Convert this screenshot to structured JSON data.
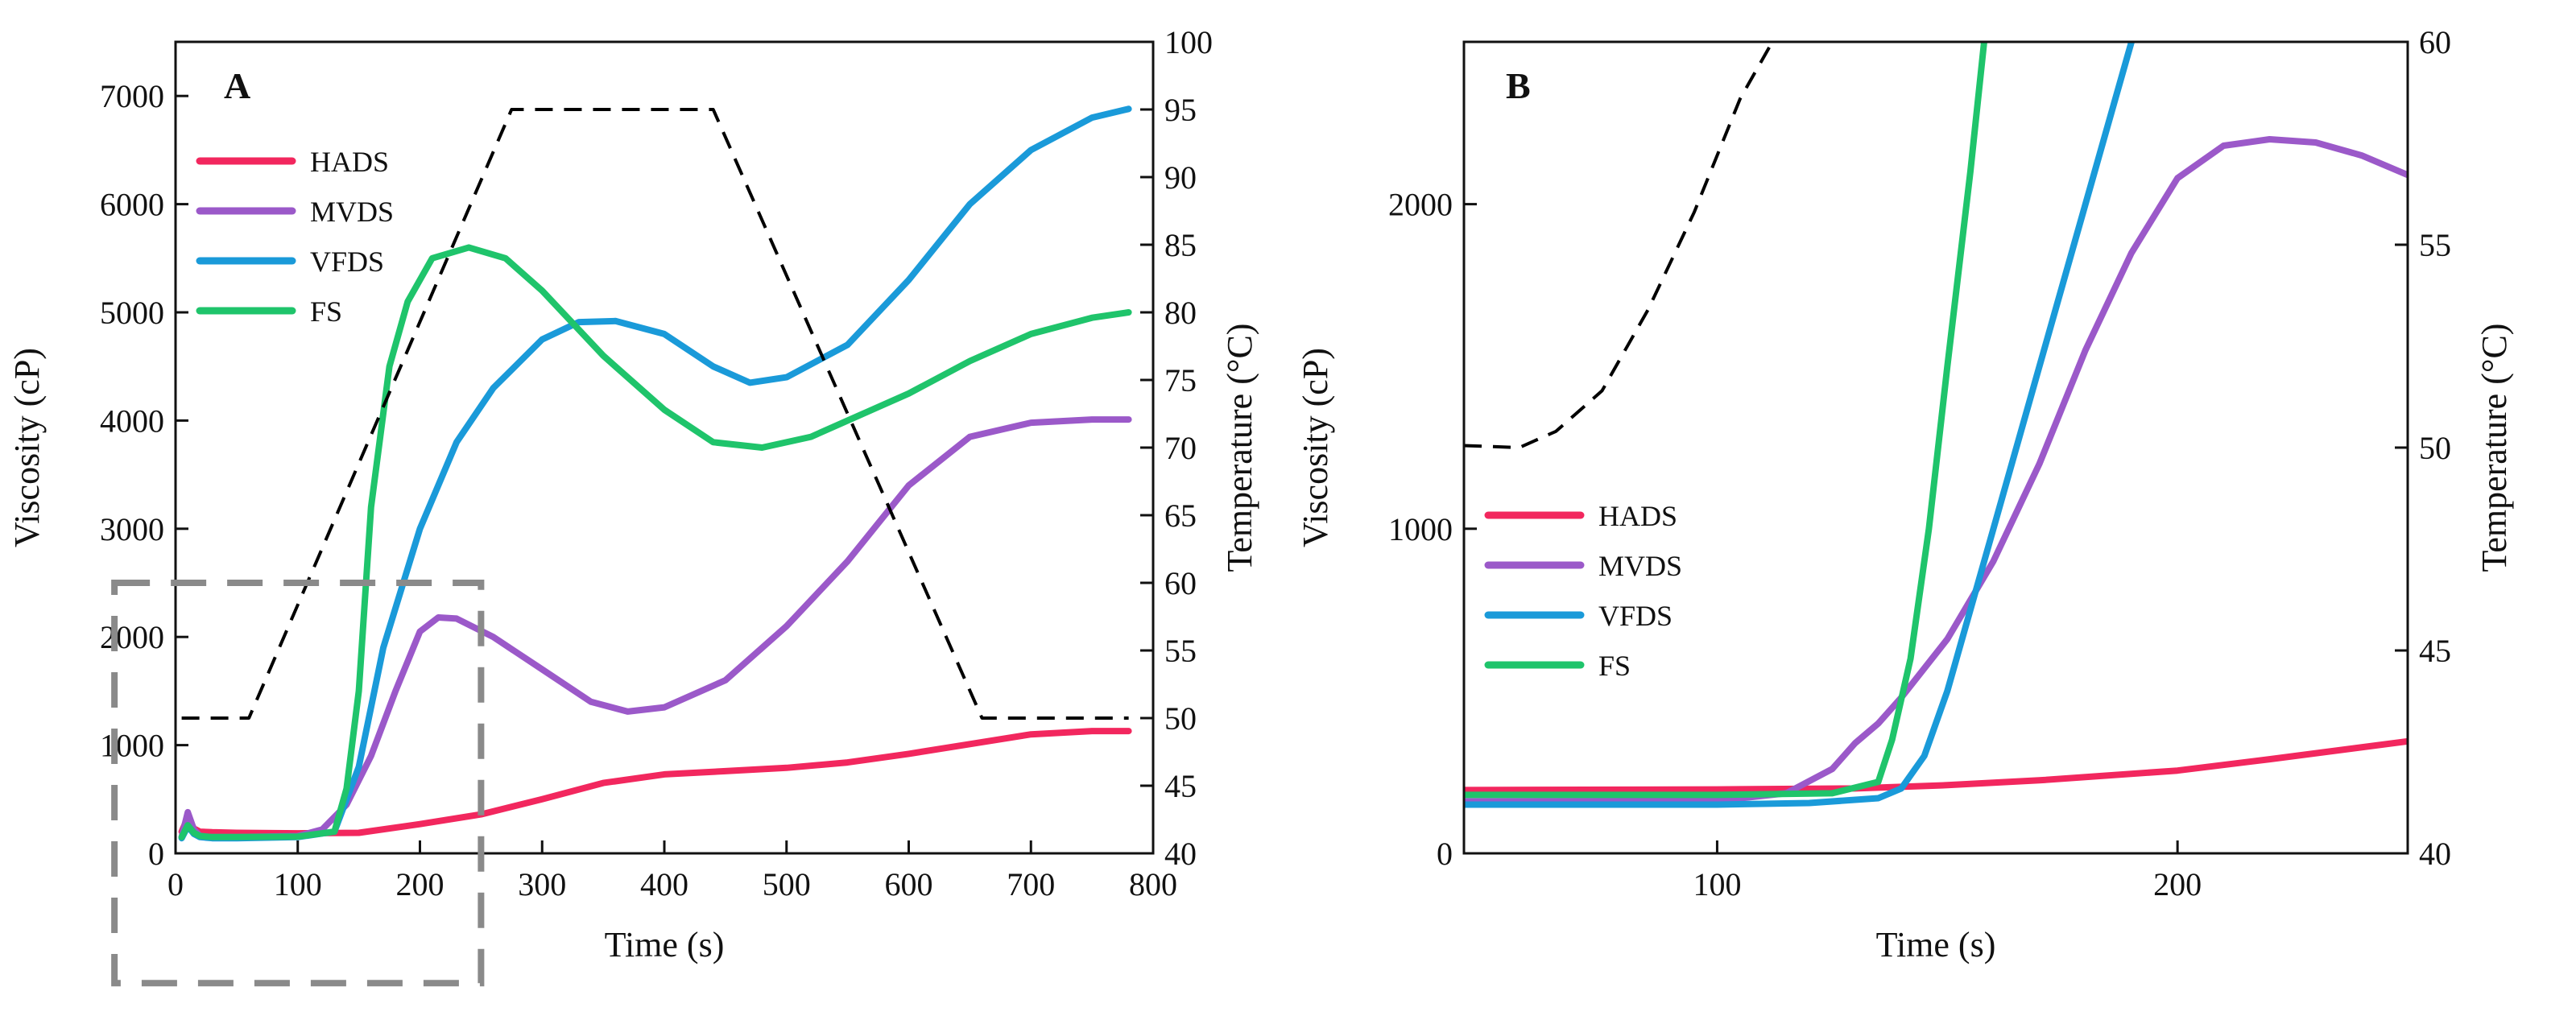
{
  "chart_data": [
    {
      "panel": "A",
      "type": "line",
      "xlabel": "Time (s)",
      "ylabel": "Viscosity (cP)",
      "y2label": "Temperature (°C)",
      "xlim": [
        0,
        800
      ],
      "ylim": [
        0,
        7500
      ],
      "y2lim": [
        40,
        100
      ],
      "xticks": [
        0,
        100,
        200,
        300,
        400,
        500,
        600,
        700,
        800
      ],
      "yticks": [
        0,
        1000,
        2000,
        3000,
        4000,
        5000,
        6000,
        7000
      ],
      "y2ticks": [
        40,
        45,
        50,
        55,
        60,
        65,
        70,
        75,
        80,
        85,
        90,
        95,
        100
      ],
      "legend_position": "top-left",
      "series": [
        {
          "name": "HADS",
          "color": "#f2275e",
          "x": [
            5,
            10,
            15,
            20,
            30,
            50,
            100,
            150,
            200,
            250,
            300,
            350,
            400,
            450,
            500,
            550,
            600,
            650,
            700,
            750,
            780
          ],
          "y": [
            200,
            330,
            230,
            200,
            195,
            190,
            185,
            190,
            270,
            360,
            500,
            650,
            730,
            760,
            790,
            840,
            920,
            1010,
            1100,
            1130,
            1130
          ]
        },
        {
          "name": "MVDS",
          "color": "#9b59c9",
          "x": [
            5,
            10,
            15,
            20,
            30,
            50,
            100,
            120,
            140,
            160,
            180,
            200,
            215,
            230,
            260,
            300,
            340,
            370,
            400,
            450,
            500,
            550,
            600,
            650,
            700,
            750,
            780
          ],
          "y": [
            150,
            380,
            220,
            160,
            150,
            150,
            160,
            220,
            450,
            900,
            1500,
            2050,
            2180,
            2170,
            2000,
            1700,
            1400,
            1310,
            1350,
            1600,
            2100,
            2700,
            3400,
            3850,
            3980,
            4010,
            4010
          ]
        },
        {
          "name": "VFDS",
          "color": "#1a9ad9",
          "x": [
            5,
            10,
            15,
            20,
            30,
            50,
            100,
            130,
            150,
            170,
            200,
            230,
            260,
            300,
            330,
            360,
            400,
            440,
            470,
            500,
            550,
            600,
            650,
            700,
            750,
            780
          ],
          "y": [
            140,
            250,
            180,
            150,
            140,
            140,
            150,
            200,
            800,
            1900,
            3000,
            3800,
            4300,
            4750,
            4910,
            4920,
            4800,
            4500,
            4350,
            4400,
            4700,
            5300,
            6000,
            6500,
            6800,
            6880
          ]
        },
        {
          "name": "FS",
          "color": "#1fc46b",
          "x": [
            5,
            10,
            15,
            20,
            30,
            50,
            100,
            130,
            140,
            150,
            160,
            175,
            190,
            210,
            240,
            270,
            300,
            350,
            400,
            440,
            480,
            520,
            560,
            600,
            650,
            700,
            750,
            780
          ],
          "y": [
            150,
            260,
            190,
            160,
            150,
            150,
            155,
            200,
            600,
            1500,
            3200,
            4500,
            5100,
            5500,
            5600,
            5500,
            5200,
            4600,
            4100,
            3800,
            3750,
            3850,
            4050,
            4250,
            4550,
            4800,
            4950,
            5000
          ]
        },
        {
          "name": "Temperature",
          "color": "#000000",
          "dashed": true,
          "axis": "y2",
          "x": [
            5,
            60,
            275,
            440,
            660,
            780
          ],
          "y": [
            50,
            50,
            95,
            95,
            50,
            50
          ]
        }
      ],
      "legend": [
        {
          "name": "HADS",
          "color": "#f2275e"
        },
        {
          "name": "MVDS",
          "color": "#9b59c9"
        },
        {
          "name": "VFDS",
          "color": "#1a9ad9"
        },
        {
          "name": "FS",
          "color": "#1fc46b"
        }
      ],
      "annotations": [
        {
          "type": "zoom-box",
          "style": "dashed-gray",
          "x_range": [
            -50,
            250
          ],
          "y_range": [
            -1200,
            2500
          ],
          "note": "region enlarged in panel B"
        }
      ]
    },
    {
      "panel": "B",
      "type": "line",
      "xlabel": "Time (s)",
      "ylabel": "Viscosity (cP)",
      "y2label": "Temperature (°C)",
      "xlim": [
        45,
        250
      ],
      "ylim": [
        0,
        2500
      ],
      "y2lim": [
        40,
        60
      ],
      "xticks": [
        100,
        200
      ],
      "yticks": [
        0,
        1000,
        2000
      ],
      "y2ticks": [
        40,
        45,
        50,
        55,
        60
      ],
      "legend_position": "center-left",
      "series": [
        {
          "name": "HADS",
          "color": "#f2275e",
          "x": [
            45,
            100,
            130,
            150,
            170,
            200,
            220,
            250
          ],
          "y": [
            195,
            197,
            200,
            210,
            225,
            255,
            290,
            345
          ]
        },
        {
          "name": "MVDS",
          "color": "#9b59c9",
          "x": [
            45,
            100,
            115,
            125,
            130,
            135,
            140,
            150,
            160,
            170,
            180,
            190,
            200,
            210,
            220,
            230,
            240,
            250
          ],
          "y": [
            160,
            162,
            185,
            260,
            340,
            400,
            480,
            660,
            900,
            1200,
            1550,
            1850,
            2080,
            2180,
            2200,
            2190,
            2150,
            2090
          ]
        },
        {
          "name": "VFDS",
          "color": "#1a9ad9",
          "x": [
            45,
            100,
            120,
            135,
            140,
            145,
            150,
            160,
            170,
            180,
            190
          ],
          "y": [
            150,
            150,
            155,
            170,
            200,
            300,
            500,
            1000,
            1500,
            2000,
            2500
          ]
        },
        {
          "name": "FS",
          "color": "#1fc46b",
          "x": [
            45,
            100,
            125,
            135,
            138,
            142,
            146,
            150,
            155,
            158
          ],
          "y": [
            180,
            180,
            185,
            220,
            350,
            600,
            1000,
            1500,
            2100,
            2500
          ]
        },
        {
          "name": "Temperature",
          "color": "#000000",
          "dashed": true,
          "axis": "y2",
          "x": [
            45,
            57,
            65,
            75,
            85,
            95,
            105,
            112
          ],
          "y": [
            50.05,
            50.0,
            50.4,
            51.4,
            53.4,
            55.8,
            58.6,
            60
          ]
        }
      ],
      "legend": [
        {
          "name": "HADS",
          "color": "#f2275e"
        },
        {
          "name": "MVDS",
          "color": "#9b59c9"
        },
        {
          "name": "VFDS",
          "color": "#1a9ad9"
        },
        {
          "name": "FS",
          "color": "#1fc46b"
        }
      ]
    }
  ]
}
